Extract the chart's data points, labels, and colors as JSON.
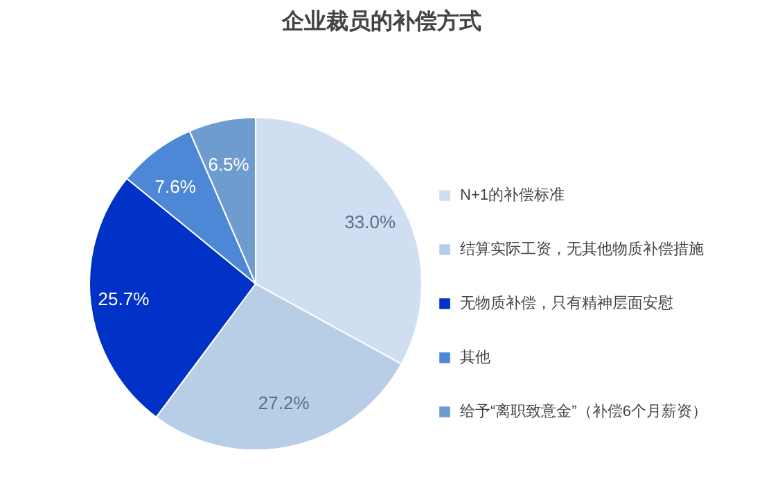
{
  "chart_data": {
    "type": "pie",
    "title": "企业裁员的补偿方式",
    "categories": [
      "N+1的补偿标准",
      "结算实际工资，无其他物质补偿措施",
      "无物质补偿，只有精神层面安慰",
      "其他",
      "给予“离职致意金”（补偿6个月薪资）"
    ],
    "values": [
      33.0,
      27.2,
      25.7,
      7.6,
      6.5
    ],
    "colors": [
      "#cfdff1",
      "#b8cde6",
      "#0032c8",
      "#4d88d6",
      "#6f9ccf"
    ],
    "value_labels": [
      "33.0%",
      "27.2%",
      "25.7%",
      "7.6%",
      "6.5%"
    ],
    "legend": "right"
  }
}
